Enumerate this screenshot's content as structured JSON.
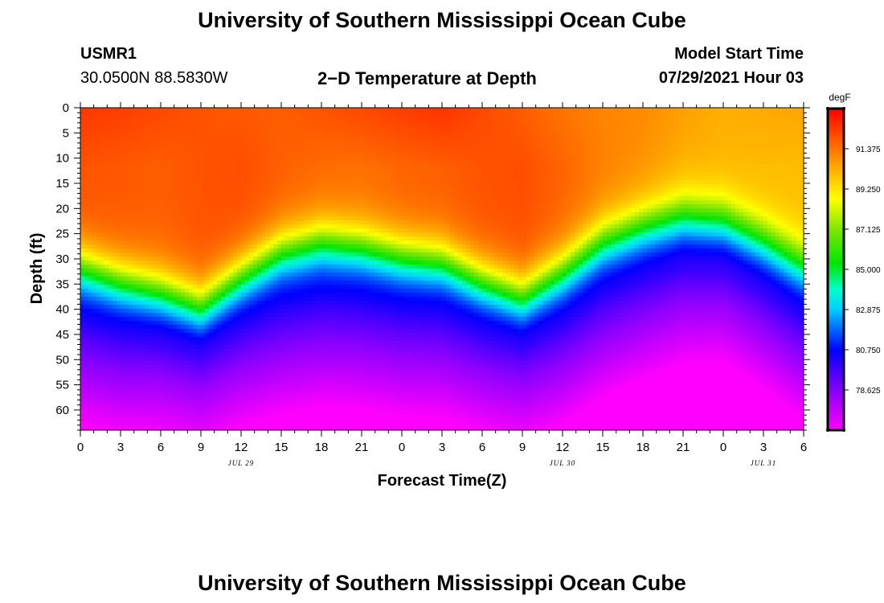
{
  "page": {
    "title_top": "University of Southern Mississippi Ocean Cube",
    "title_bottom": "University of Southern Mississippi Ocean Cube",
    "station_id": "USMR1",
    "station_coords": "30.0500N  88.5830W",
    "plot_title": "2−D Temperature at Depth",
    "model_start_label": "Model Start Time",
    "model_start_value": "07/29/2021 Hour 03"
  },
  "chart_data": {
    "type": "heatmap",
    "title": "2−D Temperature at Depth",
    "xlabel": "Forecast Time(Z)",
    "ylabel": "Depth (ft)",
    "units_label": "degF",
    "x_ticks": [
      "0",
      "3",
      "6",
      "9",
      "12",
      "15",
      "18",
      "21",
      "0",
      "3",
      "6",
      "9",
      "12",
      "15",
      "18",
      "21",
      "0",
      "3",
      "6"
    ],
    "x_range_hours": [
      0,
      54
    ],
    "date_labels": [
      {
        "text": "JUL 29",
        "hour": 12
      },
      {
        "text": "JUL 30",
        "hour": 36
      },
      {
        "text": "JUL 31",
        "hour": 51
      }
    ],
    "y_ticks": [
      "0",
      "5",
      "10",
      "15",
      "20",
      "25",
      "30",
      "35",
      "40",
      "45",
      "50",
      "55",
      "60"
    ],
    "y_range_ft": [
      0,
      64
    ],
    "colorbar_ticks": [
      "91.375",
      "89.250",
      "87.125",
      "85.000",
      "82.875",
      "80.750",
      "78.625"
    ],
    "colorbar_range": [
      76.5,
      93.5
    ],
    "profile_hours": [
      0,
      3,
      6,
      9,
      12,
      15,
      18,
      21,
      24,
      27,
      30,
      33,
      36,
      39,
      42,
      45,
      48,
      51,
      54
    ],
    "surface_temp": [
      92.5,
      92.4,
      92.2,
      92.0,
      91.9,
      91.8,
      92.0,
      92.2,
      92.4,
      92.6,
      92.2,
      91.8,
      91.4,
      91.1,
      91.0,
      90.6,
      90.3,
      90.4,
      90.5
    ],
    "mixed_layer_temp": [
      92.0,
      91.9,
      91.8,
      92.0,
      92.1,
      91.8,
      91.6,
      91.5,
      91.7,
      91.8,
      92.0,
      92.1,
      91.7,
      91.2,
      90.9,
      90.4,
      90.2,
      90.1,
      90.0
    ],
    "thermocline_depth_ft": [
      32,
      35,
      37,
      40,
      34,
      29,
      27,
      28,
      30,
      31,
      35,
      38,
      33,
      27,
      24,
      22,
      23,
      27,
      32
    ],
    "thermocline_width_ft": 10,
    "bottom_temp": [
      79.9,
      79.7,
      79.4,
      79.2,
      79.6,
      80.0,
      80.1,
      80.0,
      79.9,
      79.8,
      79.6,
      79.4,
      79.7,
      79.8,
      79.7,
      79.5,
      79.3,
      79.5,
      79.7
    ],
    "bottom_gradient_per_ft": 0.16
  }
}
